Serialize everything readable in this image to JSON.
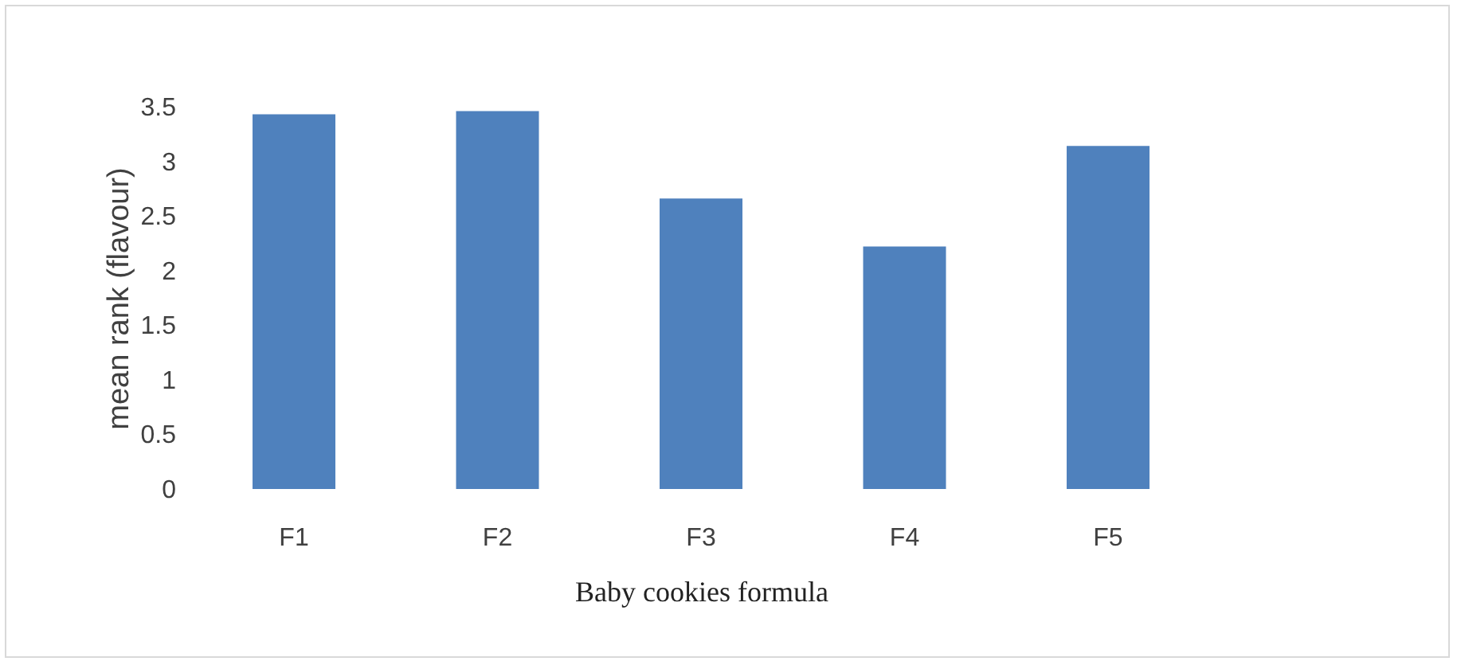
{
  "chart_data": {
    "type": "bar",
    "xlabel": "Baby cookies formula",
    "ylabel": "mean rank (flavour)",
    "categories": [
      "F1",
      "F2",
      "F3",
      "F4",
      "F5"
    ],
    "values": [
      3.43,
      3.46,
      2.66,
      2.22,
      3.14
    ],
    "color": "#4f81bd",
    "ylim": [
      0,
      3.5
    ],
    "yticks": [
      0,
      0.5,
      1,
      1.5,
      2,
      2.5,
      3,
      3.5
    ],
    "grid": false
  }
}
